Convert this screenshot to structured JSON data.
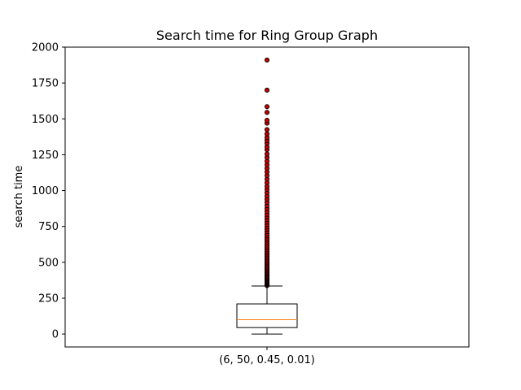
{
  "chart_data": {
    "type": "box",
    "title": "Search time for Ring Group Graph",
    "xlabel": "",
    "ylabel": "search time",
    "ylim": [
      -90,
      2000
    ],
    "yticks": [
      0,
      250,
      500,
      750,
      1000,
      1250,
      1500,
      1750,
      2000
    ],
    "categories": [
      "(6, 50, 0.45, 0.01)"
    ],
    "boxes": [
      {
        "category": "(6, 50, 0.45, 0.01)",
        "whisker_low": 0,
        "q1": 45,
        "median": 100,
        "q3": 210,
        "whisker_high": 335,
        "outliers": [
          338,
          342,
          347,
          352,
          358,
          363,
          369,
          374,
          380,
          386,
          392,
          399,
          405,
          412,
          419,
          426,
          433,
          441,
          449,
          457,
          465,
          474,
          483,
          492,
          501,
          511,
          521,
          531,
          542,
          553,
          564,
          576,
          588,
          600,
          613,
          626,
          640,
          654,
          668,
          683,
          698,
          714,
          730,
          746,
          763,
          780,
          798,
          816,
          835,
          855,
          875,
          896,
          918,
          940,
          962,
          985,
          1008,
          1030,
          1055,
          1080,
          1105,
          1130,
          1155,
          1180,
          1205,
          1230,
          1255,
          1285,
          1305,
          1330,
          1350,
          1370,
          1395,
          1425,
          1470,
          1490,
          1545,
          1585,
          1700,
          1910
        ]
      }
    ],
    "colors": {
      "box": "#000000",
      "median": "#ff7f0e",
      "outlier_fill": "#cc0000",
      "outlier_edge": "#000000"
    },
    "grid": false
  }
}
